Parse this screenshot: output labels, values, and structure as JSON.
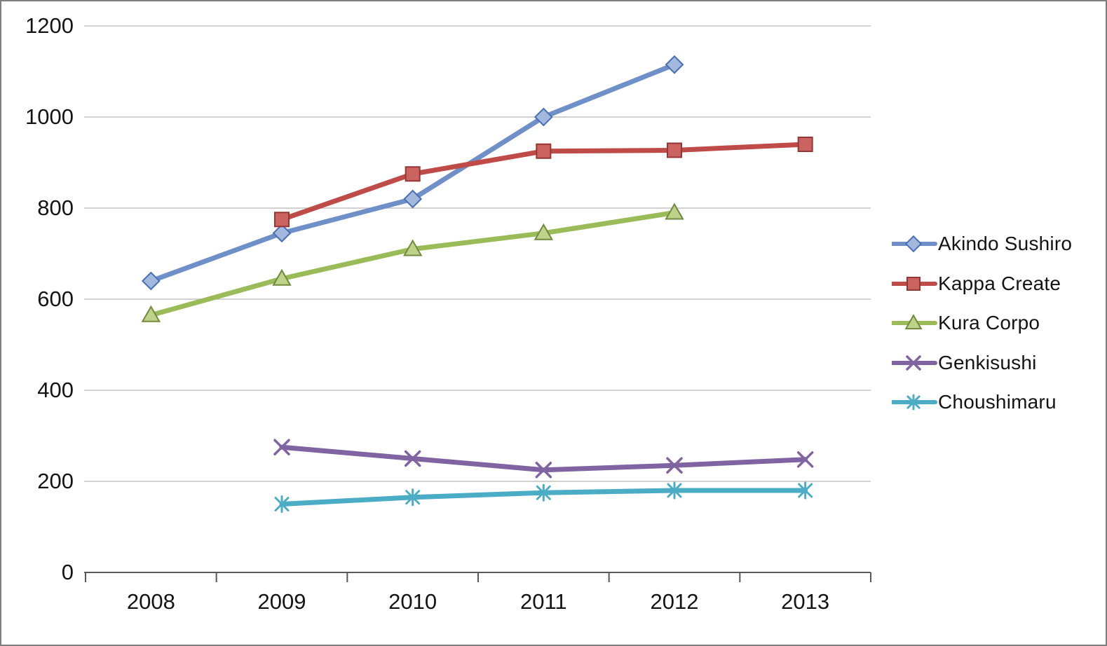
{
  "chart_data": {
    "type": "line",
    "title": "",
    "xlabel": "",
    "ylabel": "",
    "x": [
      "2008",
      "2009",
      "2010",
      "2011",
      "2012",
      "2013"
    ],
    "ylim": [
      0,
      1200
    ],
    "ytick_step": 200,
    "yticks": [
      "0",
      "200",
      "400",
      "600",
      "800",
      "1000",
      "1200"
    ],
    "grid": true,
    "legend_position": "right",
    "axis_color": "#595959",
    "gridline_color": "#c2c2c2",
    "series": [
      {
        "name": "Akindo Sushiro",
        "marker": "diamond",
        "color": "#6f8fc8",
        "marker_fill": "#a2b8dd",
        "marker_stroke": "#4a6fb5",
        "values": [
          640,
          745,
          820,
          1000,
          1115,
          null
        ]
      },
      {
        "name": "Kappa Create",
        "marker": "square",
        "color": "#be4b48",
        "marker_fill": "#cb6360",
        "marker_stroke": "#943634",
        "values": [
          null,
          775,
          875,
          925,
          927,
          940
        ]
      },
      {
        "name": "Kura Corpo",
        "marker": "triangle",
        "color": "#9bbb59",
        "marker_fill": "#bfd28a",
        "marker_stroke": "#71893f",
        "values": [
          565,
          645,
          710,
          745,
          790,
          null
        ]
      },
      {
        "name": "Genkisushi",
        "marker": "x",
        "color": "#8064a2",
        "marker_fill": "#8064a2",
        "marker_stroke": "#8064a2",
        "values": [
          null,
          275,
          250,
          225,
          235,
          248
        ]
      },
      {
        "name": "Choushimaru",
        "marker": "asterisk",
        "color": "#4bacc6",
        "marker_fill": "#4bacc6",
        "marker_stroke": "#4bacc6",
        "values": [
          null,
          150,
          165,
          175,
          180,
          180
        ]
      }
    ]
  }
}
